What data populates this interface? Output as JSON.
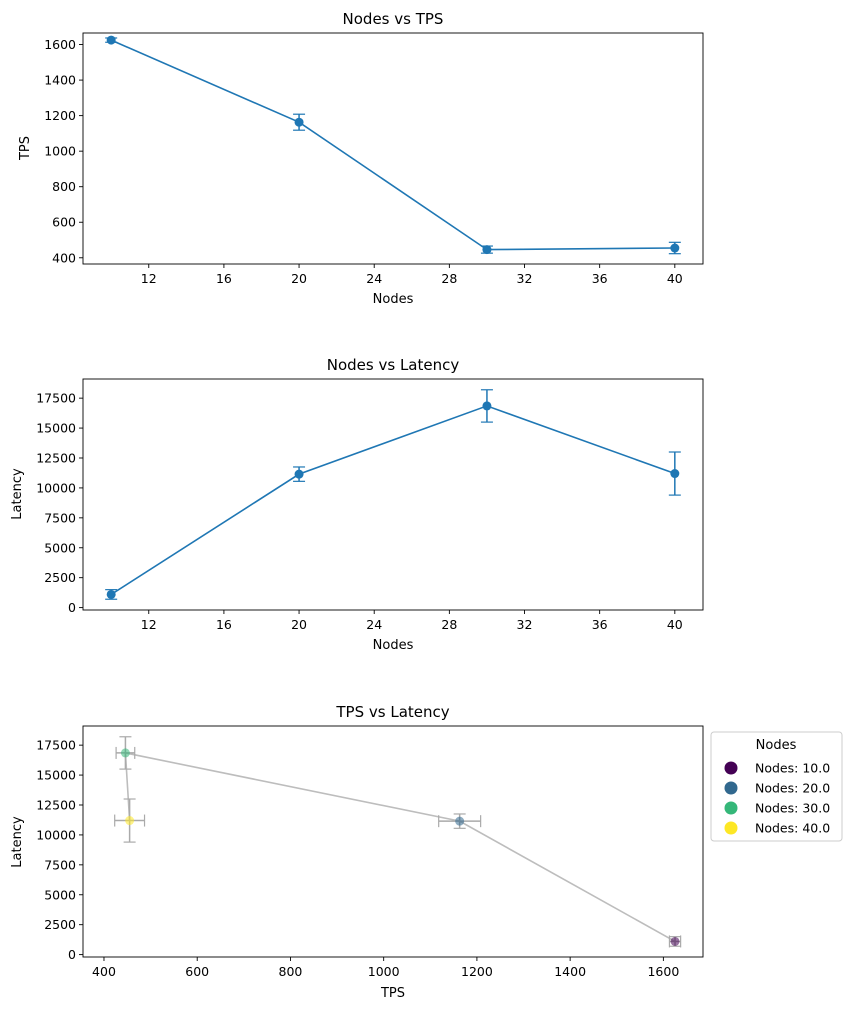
{
  "chart_data": [
    {
      "type": "line",
      "title": "Nodes vs TPS",
      "xlabel": "Nodes",
      "ylabel": "TPS",
      "xlim": [
        8.5,
        41.5
      ],
      "ylim": [
        365,
        1665
      ],
      "xticks": [
        12,
        16,
        20,
        24,
        28,
        32,
        36,
        40
      ],
      "yticks": [
        400,
        600,
        800,
        1000,
        1200,
        1400,
        1600
      ],
      "color": "#1f77b4",
      "grid": false,
      "series": [
        {
          "x": [
            10,
            20,
            30,
            40
          ],
          "y": [
            1625,
            1163,
            446,
            455
          ],
          "yerr": [
            12,
            45,
            20,
            32
          ]
        }
      ]
    },
    {
      "type": "line",
      "title": "Nodes vs Latency",
      "xlabel": "Nodes",
      "ylabel": "Latency",
      "xlim": [
        8.5,
        41.5
      ],
      "ylim": [
        -200,
        19100
      ],
      "xticks": [
        12,
        16,
        20,
        24,
        28,
        32,
        36,
        40
      ],
      "yticks": [
        0,
        2500,
        5000,
        7500,
        10000,
        12500,
        15000,
        17500
      ],
      "color": "#1f77b4",
      "grid": false,
      "series": [
        {
          "x": [
            10,
            20,
            30,
            40
          ],
          "y": [
            1100,
            11150,
            16850,
            11200
          ],
          "yerr": [
            400,
            600,
            1350,
            1800
          ]
        }
      ]
    },
    {
      "type": "scatter",
      "title": "TPS vs Latency",
      "xlabel": "TPS",
      "ylabel": "Latency",
      "xlim": [
        355,
        1685
      ],
      "ylim": [
        -200,
        19100
      ],
      "xticks": [
        400,
        600,
        800,
        1000,
        1200,
        1400,
        1600
      ],
      "yticks": [
        0,
        2500,
        5000,
        7500,
        10000,
        12500,
        15000,
        17500
      ],
      "line_color": "#bdbdbd",
      "legend": {
        "title": "Nodes",
        "placement": "outside-right-top",
        "entries": [
          {
            "label": "Nodes: 10.0",
            "color": "#440154"
          },
          {
            "label": "Nodes: 20.0",
            "color": "#31688e"
          },
          {
            "label": "Nodes: 30.0",
            "color": "#35b779"
          },
          {
            "label": "Nodes: 40.0",
            "color": "#fde725"
          }
        ]
      },
      "series": [
        {
          "nodes": [
            10,
            20,
            30,
            40
          ],
          "x": [
            1625,
            1163,
            446,
            455
          ],
          "y": [
            1100,
            11150,
            16850,
            11200
          ],
          "xerr": [
            12,
            45,
            20,
            32
          ],
          "yerr": [
            400,
            600,
            1350,
            1800
          ],
          "colors": [
            "#440154",
            "#31688e",
            "#35b779",
            "#fde725"
          ]
        }
      ]
    }
  ]
}
